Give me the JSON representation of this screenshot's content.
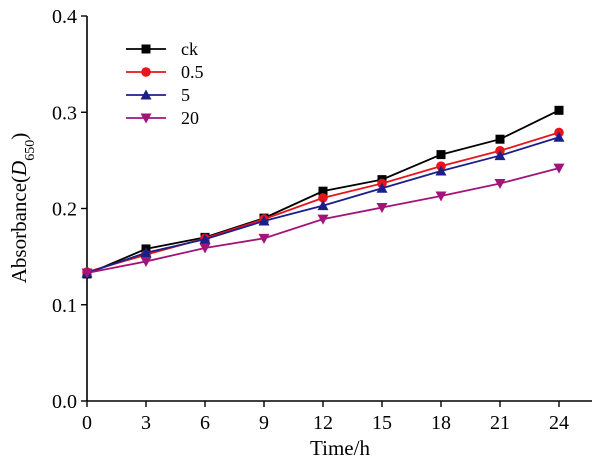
{
  "chart_data": {
    "type": "line",
    "xlabel": "Time/h",
    "ylabel": {
      "main": "Absorbance(",
      "var": "D",
      "sub": "650",
      "close": ")"
    },
    "xlim": [
      0,
      24
    ],
    "ylim": [
      0.0,
      0.4
    ],
    "xticks": [
      0,
      3,
      6,
      9,
      12,
      15,
      18,
      21,
      24
    ],
    "yticks": [
      0.0,
      0.1,
      0.2,
      0.3,
      0.4
    ],
    "ytick_labels": [
      "0.0",
      "0.1",
      "0.2",
      "0.3",
      "0.4"
    ],
    "grid": false,
    "legend_position": "top-left",
    "x": [
      0,
      3,
      6,
      9,
      12,
      15,
      18,
      21,
      24
    ],
    "series": [
      {
        "name": "ck",
        "color": "#000000",
        "marker": "square",
        "values": [
          0.132,
          0.158,
          0.17,
          0.19,
          0.218,
          0.23,
          0.256,
          0.272,
          0.302
        ]
      },
      {
        "name": "0.5",
        "color": "#e8141c",
        "marker": "circle",
        "values": [
          0.134,
          0.152,
          0.169,
          0.189,
          0.211,
          0.226,
          0.244,
          0.26,
          0.279
        ]
      },
      {
        "name": "5",
        "color": "#1b1f8a",
        "marker": "triangle-up",
        "values": [
          0.133,
          0.154,
          0.168,
          0.187,
          0.203,
          0.221,
          0.239,
          0.255,
          0.274
        ]
      },
      {
        "name": "20",
        "color": "#a3147a",
        "marker": "triangle-down",
        "values": [
          0.133,
          0.145,
          0.159,
          0.169,
          0.189,
          0.201,
          0.213,
          0.226,
          0.242
        ]
      }
    ]
  }
}
